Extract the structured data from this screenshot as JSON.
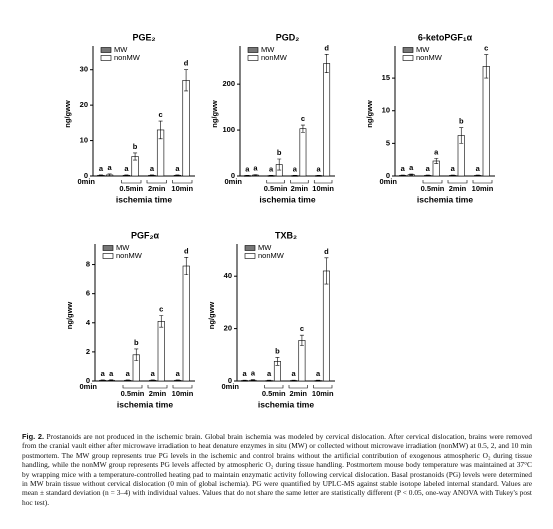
{
  "chart_data": [
    {
      "type": "bar",
      "title": "PGE₂",
      "y_label": "ng/gww",
      "x_label": "ischemia time",
      "categories": [
        "0min",
        "0.5min",
        "2min",
        "10min"
      ],
      "series": [
        {
          "name": "MW",
          "color": "#777777",
          "values": [
            0.2,
            0.2,
            0.2,
            0.2
          ],
          "errors": [
            0.1,
            0.1,
            0.1,
            0.1
          ],
          "annotations": [
            "a",
            "a",
            "a",
            "a"
          ]
        },
        {
          "name": "nonMW",
          "color": "#ffffff",
          "values": [
            0.3,
            5.5,
            13,
            27
          ],
          "errors": [
            0.3,
            1,
            2.5,
            3
          ],
          "annotations": [
            "a",
            "b",
            "c",
            "d"
          ]
        }
      ],
      "ylim": [
        0,
        35
      ],
      "yticks": [
        0,
        10,
        20,
        30
      ]
    },
    {
      "type": "bar",
      "title": "PGD₂",
      "y_label": "ng/gww",
      "x_label": "ischemia time",
      "categories": [
        "0min",
        "0.5min",
        "2min",
        "10min"
      ],
      "series": [
        {
          "name": "MW",
          "color": "#777777",
          "values": [
            1,
            1,
            1,
            1
          ],
          "errors": [
            0.5,
            0.5,
            0.5,
            0.5
          ],
          "annotations": [
            "a",
            "a",
            "a",
            "a"
          ]
        },
        {
          "name": "nonMW",
          "color": "#ffffff",
          "values": [
            2,
            25,
            103,
            245
          ],
          "errors": [
            1,
            12,
            8,
            20
          ],
          "annotations": [
            "a",
            "b",
            "c",
            "d"
          ]
        }
      ],
      "ylim": [
        0,
        270
      ],
      "yticks": [
        0,
        100,
        200
      ]
    },
    {
      "type": "bar",
      "title": "6-ketoPGF₁α",
      "y_label": "ng/gww",
      "x_label": "ischemia time",
      "categories": [
        "0min",
        "0.5min",
        "2min",
        "10min"
      ],
      "series": [
        {
          "name": "MW",
          "color": "#777777",
          "values": [
            0.1,
            0.1,
            0.1,
            0.1
          ],
          "errors": [
            0.05,
            0.05,
            0.05,
            0.05
          ],
          "annotations": [
            "a",
            "a",
            "a",
            "a"
          ]
        },
        {
          "name": "nonMW",
          "color": "#ffffff",
          "values": [
            0.2,
            2.3,
            6.2,
            16.8
          ],
          "errors": [
            0.1,
            0.4,
            1.2,
            1.8
          ],
          "annotations": [
            "a",
            "a",
            "b",
            "c"
          ]
        }
      ],
      "ylim": [
        0,
        19
      ],
      "yticks": [
        0,
        5,
        10,
        15
      ]
    },
    {
      "type": "bar",
      "title": "PGF₂α",
      "y_label": "ng/gww",
      "x_label": "ischemia time",
      "categories": [
        "0min",
        "0.5min",
        "2min",
        "10min"
      ],
      "series": [
        {
          "name": "MW",
          "color": "#777777",
          "values": [
            0.05,
            0.05,
            0.05,
            0.05
          ],
          "errors": [
            0.02,
            0.02,
            0.02,
            0.02
          ],
          "annotations": [
            "a",
            "a",
            "a",
            "a"
          ]
        },
        {
          "name": "nonMW",
          "color": "#ffffff",
          "values": [
            0.05,
            1.8,
            4.1,
            7.9
          ],
          "errors": [
            0.03,
            0.4,
            0.4,
            0.6
          ],
          "annotations": [
            "a",
            "b",
            "c",
            "d"
          ]
        }
      ],
      "ylim": [
        0,
        9
      ],
      "yticks": [
        0,
        2,
        4,
        6,
        8
      ]
    },
    {
      "type": "bar",
      "title": "TXB₂",
      "y_label": "ng/gww",
      "x_label": "ischemia time",
      "categories": [
        "0min",
        "0.5min",
        "2min",
        "10min"
      ],
      "series": [
        {
          "name": "MW",
          "color": "#777777",
          "values": [
            0.2,
            0.2,
            0.2,
            0.2
          ],
          "errors": [
            0.1,
            0.1,
            0.1,
            0.1
          ],
          "annotations": [
            "a",
            "a",
            "a",
            "a"
          ]
        },
        {
          "name": "nonMW",
          "color": "#ffffff",
          "values": [
            0.3,
            7.5,
            15.5,
            42
          ],
          "errors": [
            0.2,
            1.5,
            2,
            5
          ],
          "annotations": [
            "a",
            "b",
            "c",
            "d"
          ]
        }
      ],
      "ylim": [
        0,
        50
      ],
      "yticks": [
        0,
        20,
        40
      ]
    }
  ],
  "caption": {
    "label": "Fig. 2.",
    "text": "Prostanoids are not produced in the ischemic brain. Global brain ischemia was modeled by cervical dislocation. After cervical dislocation, brains were removed from the cranial vault either after microwave irradiation to heat denature enzymes in situ (MW) or collected without microwave irradiation (nonMW) at 0.5, 2, and 10 min postmortem. The MW group represents true PG levels in the ischemic and control brains without the artificial contribution of exogenous atmospheric O₂ during tissue handling, while the nonMW group represents PG levels affected by atmospheric O₂ during tissue handling. Postmortem mouse body temperature was maintained at 37°C by wrapping mice with a temperature-controlled heating pad to maintain enzymatic activity following cervical dislocation. Basal prostanoids (PG) levels were determined in MW brain tissue without cervical dislocation (0 min of global ischemia). PG were quantified by UPLC-MS against stable isotope labeled internal standard. Values are mean ± standard deviation (n = 3–4) with individual values. Values that do not share the same letter are statistically different (P < 0.05, one-way ANOVA with Tukey's post hoc test)."
  }
}
